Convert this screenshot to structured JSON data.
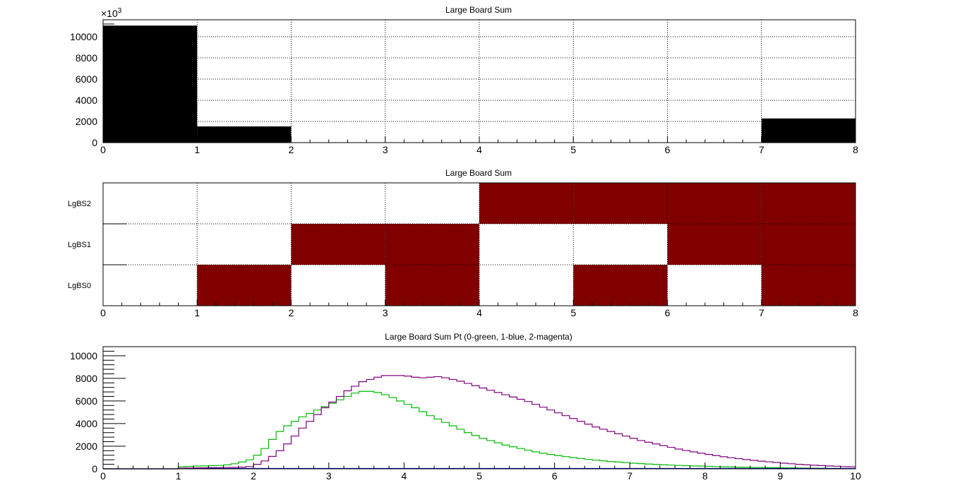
{
  "chart_data": [
    {
      "type": "bar",
      "title": "Large Board Sum",
      "xlim": [
        0,
        8
      ],
      "ylim": [
        0,
        11600
      ],
      "y_exponent_label": "×10",
      "y_exponent_power": "3",
      "x_ticks": [
        0,
        1,
        2,
        3,
        4,
        5,
        6,
        7,
        8
      ],
      "y_ticks": [
        0,
        2000,
        4000,
        6000,
        8000,
        10000
      ],
      "grid": true,
      "bins": [
        {
          "x0": 0,
          "x1": 1,
          "value": 11050
        },
        {
          "x0": 1,
          "x1": 2,
          "value": 1530
        },
        {
          "x0": 2,
          "x1": 3,
          "value": 0
        },
        {
          "x0": 3,
          "x1": 4,
          "value": 0
        },
        {
          "x0": 4,
          "x1": 5,
          "value": 0
        },
        {
          "x0": 5,
          "x1": 6,
          "value": 0
        },
        {
          "x0": 6,
          "x1": 7,
          "value": 0
        },
        {
          "x0": 7,
          "x1": 8,
          "value": 2280
        }
      ],
      "color": "#000000"
    },
    {
      "type": "heatmap",
      "title": "Large Board Sum",
      "xlim": [
        0,
        8
      ],
      "x_ticks": [
        0,
        1,
        2,
        3,
        4,
        5,
        6,
        7,
        8
      ],
      "rows": [
        "LgBS0",
        "LgBS1",
        "LgBS2"
      ],
      "cells": [
        [
          0,
          1,
          0,
          1,
          0,
          1,
          0,
          1
        ],
        [
          0,
          0,
          1,
          1,
          0,
          0,
          1,
          1
        ],
        [
          0,
          0,
          0,
          0,
          1,
          1,
          1,
          1
        ]
      ],
      "fill_color": "#800000",
      "grid": true
    },
    {
      "type": "line",
      "title": "Large Board Sum Pt (0-green, 1-blue, 2-magenta)",
      "xlim": [
        0,
        10
      ],
      "ylim": [
        0,
        10800
      ],
      "x_ticks": [
        0,
        1,
        2,
        3,
        4,
        5,
        6,
        7,
        8,
        9,
        10
      ],
      "y_ticks": [
        0,
        2000,
        4000,
        6000,
        8000,
        10000
      ],
      "bin_width": 0.1,
      "grid": false,
      "series": [
        {
          "color": "#00bb00",
          "x_start": 0,
          "values": [
            0,
            0,
            0,
            0,
            0,
            0,
            0,
            0,
            0,
            0,
            180,
            220,
            240,
            260,
            280,
            300,
            350,
            450,
            600,
            800,
            1200,
            1800,
            2600,
            3300,
            3800,
            4200,
            4600,
            4900,
            5200,
            5500,
            5800,
            6100,
            6400,
            6700,
            6850,
            6850,
            6750,
            6550,
            6300,
            6000,
            5700,
            5400,
            5050,
            4700,
            4400,
            4100,
            3800,
            3500,
            3200,
            2950,
            2700,
            2500,
            2300,
            2100,
            1950,
            1800,
            1650,
            1500,
            1380,
            1270,
            1170,
            1080,
            990,
            910,
            840,
            770,
            710,
            650,
            600,
            550,
            500,
            460,
            420,
            390,
            360,
            330,
            300,
            280,
            260,
            240,
            220,
            200,
            180,
            165,
            150,
            140,
            130,
            120,
            110,
            100,
            90,
            80,
            72,
            64,
            57,
            50,
            44,
            38,
            32,
            26
          ]
        },
        {
          "color": "#0000cc",
          "x_start": 0,
          "values": [
            0,
            0,
            0,
            0,
            0,
            0,
            0,
            0,
            0,
            0,
            30,
            30,
            30,
            30,
            30,
            30,
            30,
            30,
            30,
            30,
            30,
            30,
            30,
            30,
            30,
            30,
            30,
            30,
            30,
            30,
            30,
            30,
            30,
            30,
            30,
            30,
            30,
            30,
            30,
            30,
            30,
            30,
            30,
            30,
            30,
            30,
            30,
            30,
            30,
            30,
            30,
            30,
            30,
            30,
            30,
            30,
            30,
            30,
            30,
            30,
            30,
            30,
            30,
            30,
            30,
            30,
            30,
            30,
            30,
            30,
            30,
            30,
            30,
            30,
            30,
            30,
            30,
            30,
            30,
            30,
            30,
            30,
            30,
            30,
            30,
            30,
            30,
            30,
            30,
            30,
            30,
            30,
            30,
            30,
            30,
            30,
            30,
            30,
            30,
            30
          ]
        },
        {
          "color": "#800080",
          "x_start": 0,
          "values": [
            0,
            0,
            0,
            0,
            0,
            0,
            0,
            0,
            0,
            0,
            60,
            70,
            80,
            90,
            100,
            110,
            120,
            130,
            150,
            200,
            400,
            700,
            1100,
            1600,
            2200,
            2900,
            3600,
            4200,
            4800,
            5400,
            5900,
            6400,
            6900,
            7300,
            7700,
            7900,
            8100,
            8250,
            8250,
            8250,
            8200,
            8100,
            8050,
            8100,
            8150,
            8050,
            7900,
            7750,
            7550,
            7350,
            7150,
            6950,
            6750,
            6550,
            6350,
            6150,
            5950,
            5700,
            5450,
            5200,
            4950,
            4700,
            4450,
            4200,
            3950,
            3700,
            3500,
            3300,
            3100,
            2900,
            2700,
            2500,
            2350,
            2200,
            2050,
            1900,
            1750,
            1620,
            1500,
            1380,
            1270,
            1170,
            1070,
            980,
            900,
            820,
            750,
            680,
            620,
            560,
            500,
            450,
            400,
            360,
            320,
            290,
            260,
            230,
            200,
            180
          ]
        }
      ]
    }
  ]
}
